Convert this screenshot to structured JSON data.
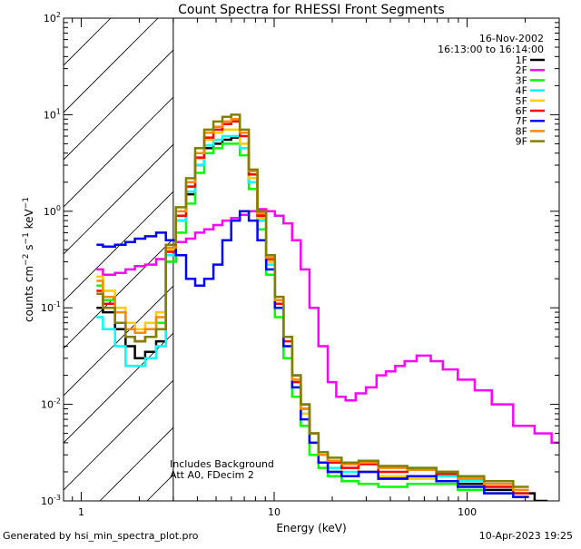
{
  "chart_data": {
    "type": "line",
    "title": "Count Spectra for RHESSI Front Segments",
    "xlabel": "Energy (keV)",
    "ylabel": "counts cm^-2 s^-1 keV^-1",
    "ylabel_parts": {
      "base": "counts cm",
      "exp1": "−2",
      "mid": " s",
      "exp2": "−1",
      "mid2": " keV",
      "exp3": "−1"
    },
    "xscale": "log",
    "yscale": "log",
    "xlim": [
      0.81,
      300
    ],
    "ylim": [
      0.001,
      100
    ],
    "x_ticks": [
      {
        "value": 1,
        "label": "1"
      },
      {
        "value": 10,
        "label": "10"
      },
      {
        "value": 100,
        "label": "100"
      }
    ],
    "y_ticks": [
      {
        "value": 0.001,
        "mant": "10",
        "exp": "-3"
      },
      {
        "value": 0.01,
        "mant": "10",
        "exp": "-2"
      },
      {
        "value": 0.1,
        "mant": "10",
        "exp": "-1"
      },
      {
        "value": 1,
        "mant": "10",
        "exp": "0"
      },
      {
        "value": 10,
        "mant": "10",
        "exp": "1"
      },
      {
        "value": 100,
        "mant": "10",
        "exp": "2"
      }
    ],
    "hatched_region": [
      0.81,
      3
    ],
    "annotations": {
      "date": "16-Nov-2002",
      "time_range": "16:13:00 to 16:14:00",
      "note1": "Includes Background",
      "note2": "Att A0, FDecim 2"
    },
    "footer_left": "Generated by hsi_min_spectra_plot.pro",
    "footer_right": "10-Apr-2023 19:25",
    "series": [
      {
        "name": "1F",
        "color": "#000000",
        "x": [
          1.2,
          1.4,
          1.6,
          1.8,
          2.0,
          2.3,
          2.6,
          2.9,
          3.3,
          3.7,
          4.1,
          4.6,
          5.1,
          5.7,
          6.3,
          7.0,
          7.8,
          8.6,
          9.6,
          10.6,
          11.8,
          13.0,
          14.5,
          16.0,
          18.0,
          20.0,
          25,
          30,
          40,
          60,
          80,
          100,
          150,
          200,
          250
        ],
        "y": [
          0.1,
          0.09,
          0.06,
          0.04,
          0.03,
          0.035,
          0.045,
          0.3,
          0.8,
          1.5,
          3.0,
          4.5,
          5.0,
          5.5,
          5.8,
          4.5,
          2.0,
          0.8,
          0.3,
          0.12,
          0.05,
          0.02,
          0.01,
          0.005,
          0.003,
          0.002,
          0.0018,
          0.002,
          0.0017,
          0.0018,
          0.002,
          0.0015,
          0.0013,
          0.0012,
          0.001
        ]
      },
      {
        "name": "2F",
        "color": "#ff00ff",
        "x": [
          1.2,
          1.4,
          1.6,
          1.8,
          2.0,
          2.3,
          2.6,
          2.9,
          3.3,
          3.7,
          4.1,
          4.6,
          5.1,
          5.7,
          6.3,
          7.0,
          7.8,
          8.6,
          9.6,
          10.6,
          11.8,
          13.0,
          14.5,
          16.0,
          18.0,
          20.0,
          22,
          25,
          28,
          32,
          36,
          40,
          45,
          50,
          60,
          70,
          80,
          100,
          120,
          150,
          200,
          250,
          300
        ],
        "y": [
          0.25,
          0.22,
          0.23,
          0.25,
          0.27,
          0.28,
          0.32,
          0.45,
          0.48,
          0.52,
          0.6,
          0.65,
          0.72,
          0.8,
          0.85,
          0.92,
          1.0,
          1.05,
          1.0,
          0.9,
          0.75,
          0.5,
          0.25,
          0.1,
          0.04,
          0.017,
          0.012,
          0.011,
          0.013,
          0.015,
          0.02,
          0.022,
          0.025,
          0.028,
          0.032,
          0.028,
          0.023,
          0.018,
          0.014,
          0.01,
          0.006,
          0.005,
          0.004
        ]
      },
      {
        "name": "3F",
        "color": "#00ff00",
        "x": [
          1.2,
          1.4,
          1.6,
          1.8,
          2.0,
          2.3,
          2.6,
          2.9,
          3.3,
          3.7,
          4.1,
          4.6,
          5.1,
          5.7,
          6.3,
          7.0,
          7.8,
          8.6,
          9.6,
          10.6,
          11.8,
          13.0,
          14.5,
          16.0,
          18.0,
          20.0,
          25,
          30,
          40,
          60,
          80,
          100,
          150,
          200
        ],
        "y": [
          0.17,
          0.12,
          0.09,
          0.07,
          0.06,
          0.06,
          0.07,
          0.3,
          0.6,
          1.2,
          2.5,
          4.0,
          4.5,
          5.0,
          5.0,
          3.8,
          1.7,
          0.65,
          0.22,
          0.08,
          0.03,
          0.012,
          0.006,
          0.003,
          0.0022,
          0.0018,
          0.0016,
          0.0015,
          0.0014,
          0.0015,
          0.0015,
          0.0013,
          0.0012,
          0.0011
        ]
      },
      {
        "name": "4F",
        "color": "#00ffff",
        "x": [
          1.2,
          1.4,
          1.6,
          1.8,
          2.0,
          2.3,
          2.6,
          2.9,
          3.3,
          3.7,
          4.1,
          4.6,
          5.1,
          5.7,
          6.3,
          7.0,
          7.8,
          8.6,
          9.6,
          10.6,
          11.8,
          13.0,
          14.5,
          16.0,
          18.0,
          20.0,
          25,
          30,
          40,
          60,
          80,
          100,
          150,
          200
        ],
        "y": [
          0.08,
          0.06,
          0.04,
          0.025,
          0.025,
          0.03,
          0.04,
          0.35,
          0.8,
          1.6,
          3.0,
          4.8,
          5.5,
          6.0,
          6.0,
          4.5,
          2.0,
          0.8,
          0.28,
          0.1,
          0.04,
          0.015,
          0.008,
          0.004,
          0.0025,
          0.0022,
          0.002,
          0.0025,
          0.002,
          0.0022,
          0.0018,
          0.0016,
          0.0014,
          0.0012
        ]
      },
      {
        "name": "5F",
        "color": "#ffcc00",
        "x": [
          1.2,
          1.4,
          1.6,
          1.8,
          2.0,
          2.3,
          2.6,
          2.9,
          3.3,
          3.7,
          4.1,
          4.6,
          5.1,
          5.7,
          6.3,
          7.0,
          7.8,
          8.6,
          9.6,
          10.6,
          11.8,
          13.0,
          14.5,
          16.0,
          18.0,
          20.0,
          25,
          30,
          40,
          60,
          80,
          100,
          150,
          200
        ],
        "y": [
          0.21,
          0.15,
          0.1,
          0.07,
          0.06,
          0.07,
          0.09,
          0.4,
          0.9,
          1.8,
          3.5,
          5.5,
          6.5,
          7.0,
          7.0,
          5.0,
          2.2,
          0.85,
          0.3,
          0.1,
          0.04,
          0.015,
          0.008,
          0.004,
          0.0025,
          0.002,
          0.0022,
          0.002,
          0.0018,
          0.0017,
          0.0016,
          0.0014,
          0.0012,
          0.0011
        ]
      },
      {
        "name": "6F",
        "color": "#ff0000",
        "x": [
          1.2,
          1.4,
          1.6,
          1.8,
          2.0,
          2.3,
          2.6,
          2.9,
          3.3,
          3.7,
          4.1,
          4.6,
          5.1,
          5.7,
          6.3,
          7.0,
          7.8,
          8.6,
          9.6,
          10.6,
          11.8,
          13.0,
          14.5,
          16.0,
          18.0,
          20.0,
          25,
          30,
          40,
          60,
          80,
          100,
          150,
          200
        ],
        "y": [
          0.15,
          0.11,
          0.07,
          0.05,
          0.045,
          0.05,
          0.06,
          0.38,
          0.9,
          1.8,
          3.6,
          5.8,
          7.0,
          8.0,
          8.5,
          6.0,
          2.4,
          0.9,
          0.32,
          0.11,
          0.045,
          0.017,
          0.009,
          0.005,
          0.003,
          0.0025,
          0.0022,
          0.0024,
          0.002,
          0.0021,
          0.0019,
          0.0017,
          0.0014,
          0.0012
        ]
      },
      {
        "name": "7F",
        "color": "#0000ff",
        "x": [
          1.2,
          1.4,
          1.6,
          1.8,
          2.0,
          2.3,
          2.6,
          2.9,
          3.3,
          3.7,
          4.1,
          4.6,
          5.1,
          5.7,
          6.3,
          7.0,
          7.8,
          8.6,
          9.6,
          10.6,
          11.8,
          13.0,
          14.5,
          16.0,
          18.0,
          20.0,
          25,
          30,
          40,
          60,
          80,
          100,
          150,
          200
        ],
        "y": [
          0.45,
          0.43,
          0.45,
          0.48,
          0.52,
          0.55,
          0.6,
          0.5,
          0.35,
          0.2,
          0.17,
          0.2,
          0.28,
          0.5,
          0.8,
          1.0,
          0.8,
          0.5,
          0.25,
          0.1,
          0.04,
          0.015,
          0.007,
          0.004,
          0.0025,
          0.002,
          0.0018,
          0.002,
          0.0017,
          0.0018,
          0.0016,
          0.0014,
          0.0012,
          0.0011
        ]
      },
      {
        "name": "8F",
        "color": "#ff8800",
        "x": [
          1.2,
          1.4,
          1.6,
          1.8,
          2.0,
          2.3,
          2.6,
          2.9,
          3.3,
          3.7,
          4.1,
          4.6,
          5.1,
          5.7,
          6.3,
          7.0,
          7.8,
          8.6,
          9.6,
          10.6,
          11.8,
          13.0,
          14.5,
          16.0,
          18.0,
          20.0,
          25,
          30,
          40,
          60,
          80,
          100,
          150,
          200
        ],
        "y": [
          0.19,
          0.13,
          0.09,
          0.06,
          0.055,
          0.06,
          0.08,
          0.42,
          1.0,
          2.0,
          4.0,
          6.5,
          7.5,
          8.5,
          9.0,
          6.5,
          2.6,
          0.95,
          0.33,
          0.12,
          0.05,
          0.018,
          0.009,
          0.005,
          0.003,
          0.0026,
          0.0024,
          0.0025,
          0.0022,
          0.0021,
          0.002,
          0.0017,
          0.0015,
          0.0013
        ]
      },
      {
        "name": "9F",
        "color": "#808000",
        "x": [
          1.2,
          1.4,
          1.6,
          1.8,
          2.0,
          2.3,
          2.6,
          2.9,
          3.3,
          3.7,
          4.1,
          4.6,
          5.1,
          5.7,
          6.3,
          7.0,
          7.8,
          8.6,
          9.6,
          10.6,
          11.8,
          13.0,
          14.5,
          16.0,
          18.0,
          20.0,
          25,
          30,
          40,
          60,
          80,
          100,
          150,
          200
        ],
        "y": [
          0.14,
          0.1,
          0.07,
          0.05,
          0.045,
          0.05,
          0.06,
          0.45,
          1.1,
          2.2,
          4.5,
          7.0,
          8.5,
          9.5,
          10.0,
          7.0,
          2.7,
          1.0,
          0.35,
          0.13,
          0.05,
          0.02,
          0.01,
          0.005,
          0.0032,
          0.0028,
          0.0025,
          0.0026,
          0.0023,
          0.0022,
          0.002,
          0.0018,
          0.0016,
          0.0014
        ]
      }
    ]
  }
}
